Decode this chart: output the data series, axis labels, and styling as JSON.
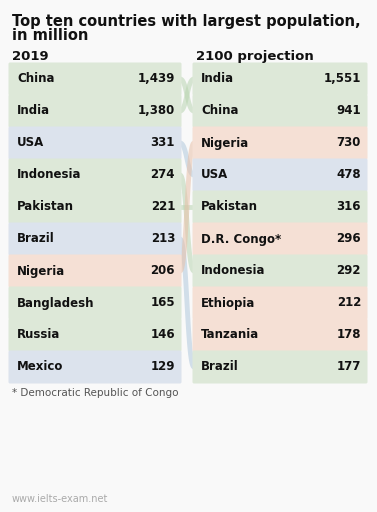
{
  "title_line1": "Top ten countries with largest population,",
  "title_line2": "in million",
  "col1_header": "2019",
  "col2_header": "2100 projection",
  "left_data": [
    {
      "country": "China",
      "value": "1,439",
      "color": "#dde8d8"
    },
    {
      "country": "India",
      "value": "1,380",
      "color": "#dde8d8"
    },
    {
      "country": "USA",
      "value": "331",
      "color": "#dce3ed"
    },
    {
      "country": "Indonesia",
      "value": "274",
      "color": "#dde8d8"
    },
    {
      "country": "Pakistan",
      "value": "221",
      "color": "#dde8d8"
    },
    {
      "country": "Brazil",
      "value": "213",
      "color": "#dce3ed"
    },
    {
      "country": "Nigeria",
      "value": "206",
      "color": "#f5e0d5"
    },
    {
      "country": "Bangladesh",
      "value": "165",
      "color": "#dde8d8"
    },
    {
      "country": "Russia",
      "value": "146",
      "color": "#dde8d8"
    },
    {
      "country": "Mexico",
      "value": "129",
      "color": "#dce3ed"
    }
  ],
  "right_data": [
    {
      "country": "India",
      "value": "1,551",
      "color": "#dde8d8"
    },
    {
      "country": "China",
      "value": "941",
      "color": "#dde8d8"
    },
    {
      "country": "Nigeria",
      "value": "730",
      "color": "#f5e0d5"
    },
    {
      "country": "USA",
      "value": "478",
      "color": "#dce3ed"
    },
    {
      "country": "Pakistan",
      "value": "316",
      "color": "#dde8d8"
    },
    {
      "country": "D.R. Congo*",
      "value": "296",
      "color": "#f5e0d5"
    },
    {
      "country": "Indonesia",
      "value": "292",
      "color": "#dde8d8"
    },
    {
      "country": "Ethiopia",
      "value": "212",
      "color": "#f5e0d5"
    },
    {
      "country": "Tanzania",
      "value": "178",
      "color": "#f5e0d5"
    },
    {
      "country": "Brazil",
      "value": "177",
      "color": "#dde8d8"
    }
  ],
  "footnote": "* Democratic Republic of Congo",
  "watermark": "www.ielts-exam.net",
  "bg_color": "#f9f9f9",
  "line_colors": {
    "#dde8d8": "#b8d4b0",
    "#dce3ed": "#b0c8dc",
    "#f5e0d5": "#e8c0a8"
  }
}
